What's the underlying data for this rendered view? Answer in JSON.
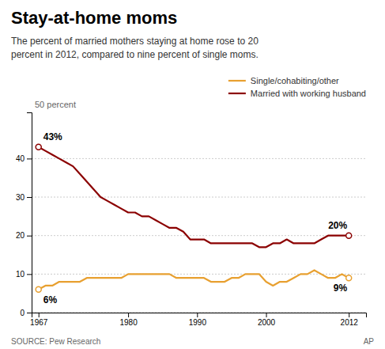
{
  "chart_data": {
    "type": "line",
    "title": "Stay-at-home moms",
    "subtitle": "The percent of married mothers staying at home rose to 20\npercent in 2012, compared to nine percent of single moms.",
    "source": "SOURCE: Pew Research",
    "credit": "AP",
    "ylabel": "50 percent",
    "x": [
      1967,
      1968,
      1969,
      1970,
      1971,
      1972,
      1973,
      1974,
      1975,
      1976,
      1977,
      1978,
      1979,
      1980,
      1981,
      1982,
      1983,
      1984,
      1985,
      1986,
      1987,
      1988,
      1989,
      1990,
      1991,
      1992,
      1993,
      1994,
      1995,
      1996,
      1997,
      1998,
      1999,
      2000,
      2001,
      2002,
      2003,
      2004,
      2005,
      2006,
      2007,
      2008,
      2009,
      2010,
      2011,
      2012
    ],
    "series": [
      {
        "name": "Married with working husband",
        "color": "#8B0000",
        "values": [
          43,
          42,
          41,
          40,
          39,
          38,
          36,
          34,
          32,
          30,
          29,
          28,
          27,
          26,
          26,
          25,
          25,
          24,
          23,
          22,
          22,
          21,
          19,
          19,
          19,
          18,
          18,
          18,
          18,
          18,
          18,
          18,
          17,
          17,
          18,
          18,
          19,
          18,
          18,
          18,
          18,
          19,
          20,
          20,
          20,
          20
        ]
      },
      {
        "name": "Single/cohabiting/other",
        "color": "#E8A030",
        "values": [
          6,
          7,
          7,
          8,
          8,
          8,
          8,
          9,
          9,
          9,
          9,
          9,
          9,
          10,
          10,
          10,
          10,
          10,
          10,
          10,
          9,
          9,
          9,
          9,
          9,
          8,
          8,
          8,
          9,
          9,
          10,
          10,
          10,
          8,
          7,
          8,
          8,
          9,
          10,
          10,
          11,
          10,
          9,
          9,
          10,
          9
        ]
      }
    ],
    "annotations": [
      {
        "text": "43%",
        "x": 1967,
        "y": 43
      },
      {
        "text": "20%",
        "x": 2012,
        "y": 20
      },
      {
        "text": "6%",
        "x": 1967,
        "y": 6
      },
      {
        "text": "9%",
        "x": 2012,
        "y": 9
      }
    ],
    "xlim": [
      1966,
      2014.5
    ],
    "xticks": [
      1967,
      1980,
      1990,
      2000,
      2012
    ],
    "ylim": [
      0,
      52
    ],
    "yticks": [
      0,
      10,
      20,
      30,
      40
    ],
    "grid": true,
    "legend": "upper right"
  }
}
